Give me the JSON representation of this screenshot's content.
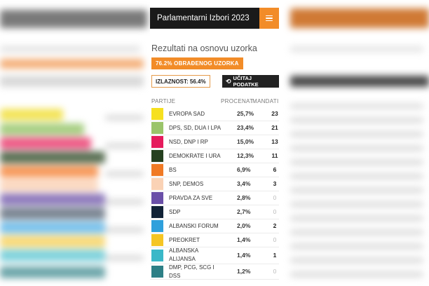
{
  "header": {
    "title": "Parlamentarni Izbori 2023",
    "menu_icon": "hamburger-menu-icon"
  },
  "subtitle": "Rezultati na osnovu uzorka",
  "progress_label": "76.2% OBRAĐENOG UZORKA",
  "processed_percent": 76.2,
  "turnout_label": "IZLAZNOST: 56.4%",
  "reload_label": "UČITAJ PODATKE",
  "table": {
    "headers": {
      "party": "PARTIJE",
      "percent": "PROCENAT",
      "seats": "MANDATI"
    },
    "rows": [
      {
        "name": "EVROPA SAD",
        "percent": "25,7%",
        "seats": "23",
        "color": "#f6e01f"
      },
      {
        "name": "DPS, SD, DUA I LPA",
        "percent": "23,4%",
        "seats": "21",
        "color": "#9ac46a"
      },
      {
        "name": "NSD, DNP I RP",
        "percent": "15,0%",
        "seats": "13",
        "color": "#e51b5c"
      },
      {
        "name": "DEMOKRATE I URA",
        "percent": "12,3%",
        "seats": "11",
        "color": "#25401f"
      },
      {
        "name": "BS",
        "percent": "6,9%",
        "seats": "6",
        "color": "#f07a25"
      },
      {
        "name": "SNP, DEMOS",
        "percent": "3,4%",
        "seats": "3",
        "color": "#fad2b5"
      },
      {
        "name": "PRAVDA ZA SVE",
        "percent": "2,8%",
        "seats": "0",
        "color": "#6a4fa8"
      },
      {
        "name": "SDP",
        "percent": "2,7%",
        "seats": "0",
        "color": "#112236"
      },
      {
        "name": "ALBANSKI FORUM",
        "percent": "2,0%",
        "seats": "2",
        "color": "#2fa0dc"
      },
      {
        "name": "PREOKRET",
        "percent": "1,4%",
        "seats": "0",
        "color": "#f5c524"
      },
      {
        "name": "ALBANSKA ALIJANSA",
        "percent": "1,4%",
        "seats": "1",
        "color": "#3ab8c8"
      },
      {
        "name": "DMP, PCG, SCG I DSS",
        "percent": "1,2%",
        "seats": "0",
        "color": "#2d7f86"
      }
    ]
  }
}
